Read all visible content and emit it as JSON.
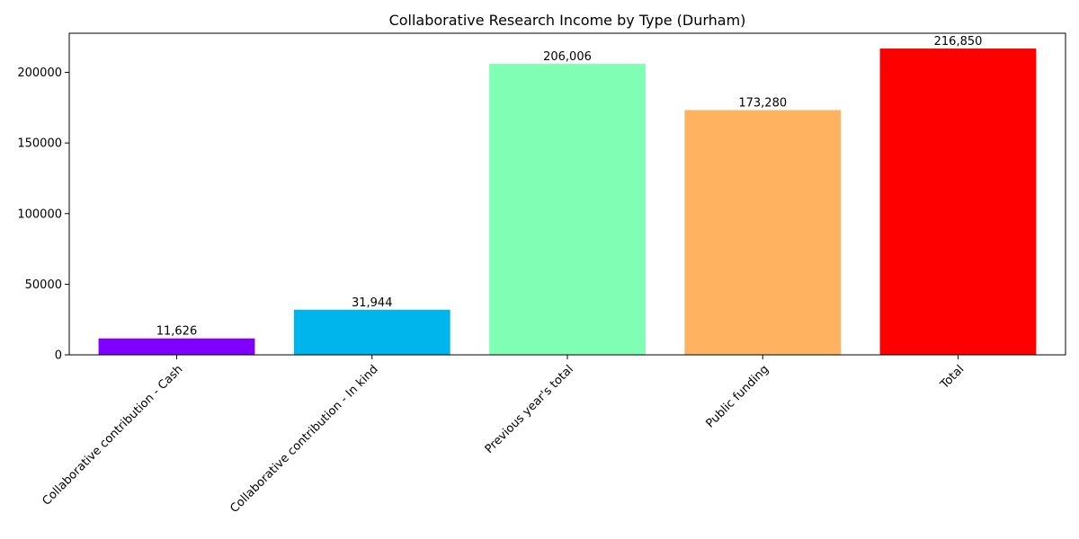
{
  "chart_data": {
    "type": "bar",
    "title": "Collaborative Research Income by Type (Durham)",
    "xlabel": "",
    "ylabel": "",
    "categories": [
      "Collaborative contribution - Cash",
      "Collaborative contribution - In kind",
      "Previous year's total",
      "Public funding",
      "Total"
    ],
    "values": [
      11626,
      31944,
      206006,
      173280,
      216850
    ],
    "data_labels": [
      "11,626",
      "31,944",
      "206,006",
      "173,280",
      "216,850"
    ],
    "colors": [
      "#8000ff",
      "#00b5eb",
      "#80ffb4",
      "#ffb360",
      "#ff0000"
    ],
    "ylim": [
      0,
      227693
    ],
    "yticks": [
      0,
      50000,
      100000,
      150000,
      200000
    ],
    "ytick_labels": [
      "0",
      "50000",
      "100000",
      "150000",
      "200000"
    ],
    "grid": false,
    "legend": "none"
  }
}
